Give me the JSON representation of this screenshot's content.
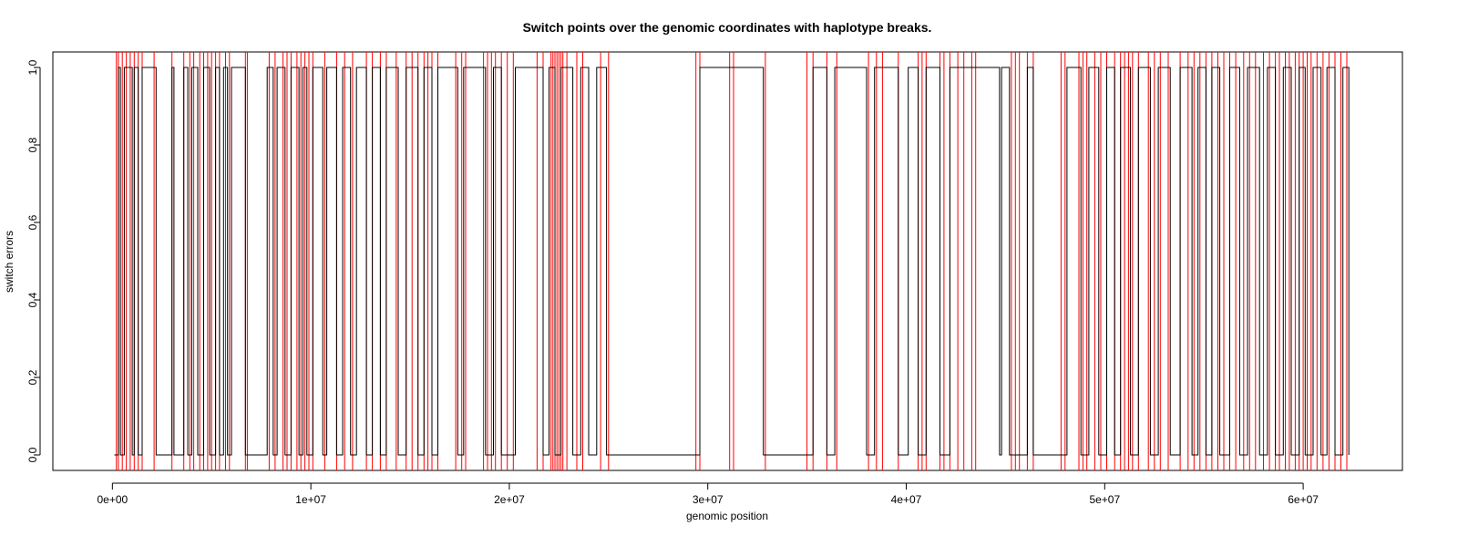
{
  "chart_data": {
    "type": "line",
    "title": "Switch points over the genomic coordinates with haplotype breaks.",
    "xlabel": "genomic position",
    "ylabel": "switch errors",
    "xlim": [
      -3000000,
      65000000
    ],
    "ylim": [
      -0.04,
      1.04
    ],
    "x_ticks": [
      0,
      10000000,
      20000000,
      30000000,
      40000000,
      50000000,
      60000000
    ],
    "x_tick_labels": [
      "0e+00",
      "1e+07",
      "2e+07",
      "3e+07",
      "4e+07",
      "5e+07",
      "6e+07"
    ],
    "y_ticks": [
      0.0,
      0.2,
      0.4,
      0.6,
      0.8,
      1.0
    ],
    "y_tick_labels": [
      "0.0",
      "0.2",
      "0.4",
      "0.6",
      "0.8",
      "1.0"
    ],
    "grid": false,
    "series": [
      {
        "color": "#000000",
        "style": "step",
        "x": [
          100000,
          300000,
          400000,
          600000,
          1000000,
          1100000,
          1300000,
          1500000,
          2000000,
          2200000,
          3000000,
          3100000,
          3600000,
          3800000,
          4000000,
          4300000,
          4600000,
          4900000,
          5200000,
          5400000,
          5600000,
          5800000,
          6000000,
          6700000,
          6800000,
          7800000,
          8100000,
          8300000,
          8700000,
          9000000,
          9400000,
          9600000,
          9800000,
          10100000,
          10600000,
          10800000,
          11300000,
          11600000,
          12000000,
          12300000,
          12800000,
          13100000,
          13500000,
          13800000,
          14400000,
          14800000,
          15400000,
          15700000,
          16100000,
          16400000,
          17400000,
          17700000,
          18800000,
          19200000,
          19600000,
          20300000,
          21700000,
          22000000,
          22300000,
          22600000,
          23200000,
          23600000,
          24000000,
          24400000,
          24900000,
          29300000,
          29600000,
          32800000,
          35000000,
          35300000,
          36000000,
          36400000,
          38000000,
          38400000,
          39600000,
          40100000,
          40600000,
          41000000,
          41700000,
          42200000,
          43500000,
          44700000,
          44800000,
          45200000,
          45600000,
          46100000,
          46400000,
          47800000,
          48100000,
          48800000,
          49200000,
          49700000,
          50100000,
          50500000,
          50800000,
          51300000,
          51700000,
          52300000,
          52700000,
          53300000,
          53800000,
          54400000,
          54700000,
          55100000,
          55400000,
          55800000,
          56300000,
          56800000,
          57200000,
          57800000,
          58200000,
          58600000,
          59000000,
          59400000,
          59800000,
          60100000,
          60500000,
          60900000,
          61200000,
          61600000,
          62000000,
          62300000
        ],
        "y": [
          0,
          1,
          0,
          1,
          0,
          1,
          0,
          1,
          1,
          0,
          1,
          0,
          1,
          0,
          1,
          0,
          1,
          0,
          1,
          0,
          1,
          0,
          1,
          0,
          0,
          1,
          0,
          1,
          0,
          1,
          0,
          1,
          0,
          1,
          0,
          1,
          0,
          1,
          0,
          1,
          0,
          1,
          0,
          1,
          0,
          1,
          0,
          1,
          0,
          1,
          0,
          1,
          0,
          1,
          0,
          1,
          0,
          1,
          0,
          1,
          0,
          1,
          0,
          1,
          0,
          0,
          1,
          0,
          0,
          1,
          0,
          1,
          0,
          1,
          0,
          1,
          0,
          1,
          0,
          1,
          1,
          0,
          1,
          0,
          0,
          1,
          0,
          0,
          1,
          0,
          1,
          0,
          1,
          0,
          1,
          0,
          1,
          0,
          1,
          0,
          1,
          0,
          1,
          0,
          1,
          0,
          1,
          0,
          1,
          0,
          1,
          0,
          1,
          0,
          1,
          0,
          1,
          0,
          1,
          0,
          1,
          0
        ],
        "x_end": 62300000
      },
      {
        "color": "#ff0000",
        "style": "vline",
        "x": [
          200000,
          300000,
          500000,
          700000,
          900000,
          1100000,
          1300000,
          1500000,
          2100000,
          3000000,
          3600000,
          3900000,
          4100000,
          4400000,
          4600000,
          4800000,
          5000000,
          5200000,
          5400000,
          5700000,
          5900000,
          6700000,
          6800000,
          7900000,
          8200000,
          8600000,
          8800000,
          9000000,
          9300000,
          9500000,
          9700000,
          9900000,
          10100000,
          10700000,
          11300000,
          11700000,
          12100000,
          12800000,
          13100000,
          13500000,
          13800000,
          14300000,
          14800000,
          15100000,
          15400000,
          15700000,
          15900000,
          16100000,
          16400000,
          17300000,
          17600000,
          17800000,
          18700000,
          18900000,
          19100000,
          19300000,
          19600000,
          19900000,
          20200000,
          21400000,
          21700000,
          22100000,
          22200000,
          22300000,
          22400000,
          22500000,
          22600000,
          22700000,
          22900000,
          23400000,
          23700000,
          24600000,
          25000000,
          29400000,
          29600000,
          31100000,
          31300000,
          32900000,
          35000000,
          35300000,
          36000000,
          36500000,
          38100000,
          38500000,
          38800000,
          39600000,
          40600000,
          40800000,
          41000000,
          41700000,
          41900000,
          42200000,
          42600000,
          42900000,
          43300000,
          43500000,
          45300000,
          45500000,
          45700000,
          46100000,
          46400000,
          47800000,
          48000000,
          48700000,
          48900000,
          49100000,
          49500000,
          49800000,
          50100000,
          50500000,
          50800000,
          51000000,
          51200000,
          51400000,
          51700000,
          52200000,
          52500000,
          52800000,
          53200000,
          53800000,
          54200000,
          54500000,
          54800000,
          55100000,
          55400000,
          55700000,
          56000000,
          56300000,
          56600000,
          57000000,
          57300000,
          57600000,
          58000000,
          58300000,
          58600000,
          58800000,
          59100000,
          59300000,
          59600000,
          59800000,
          60000000,
          60200000,
          60400000,
          60700000,
          61000000,
          61300000,
          61600000,
          61900000,
          62200000
        ]
      }
    ]
  }
}
